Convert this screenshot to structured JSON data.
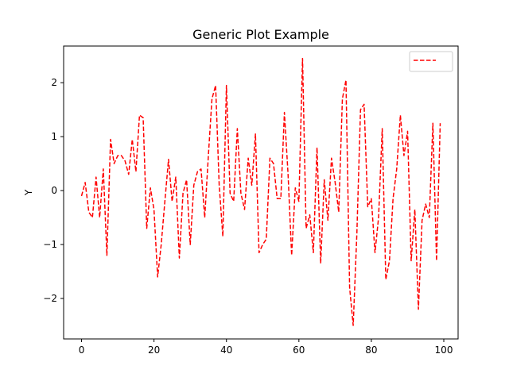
{
  "chart_data": {
    "type": "line",
    "title": "Generic Plot Example",
    "xlabel": "",
    "ylabel": "Y",
    "xlim": [
      -4.95,
      103.95
    ],
    "ylim": [
      -2.75,
      2.68
    ],
    "xticks": [
      0,
      20,
      40,
      60,
      80,
      100
    ],
    "yticks": [
      -2,
      -1,
      0,
      1,
      2
    ],
    "xtick_labels": [
      "0",
      "20",
      "40",
      "60",
      "80",
      "100"
    ],
    "ytick_labels": [
      "−2",
      "−1",
      "0",
      "1",
      "2"
    ],
    "grid": false,
    "legend": {
      "position": "upper-right",
      "entries": [
        ""
      ]
    },
    "series": [
      {
        "name": "",
        "color": "#ff0000",
        "linestyle": "dashed",
        "x": [
          0,
          1,
          2,
          3,
          4,
          5,
          6,
          7,
          8,
          9,
          10,
          11,
          12,
          13,
          14,
          15,
          16,
          17,
          18,
          19,
          20,
          21,
          22,
          23,
          24,
          25,
          26,
          27,
          28,
          29,
          30,
          31,
          32,
          33,
          34,
          35,
          36,
          37,
          38,
          39,
          40,
          41,
          42,
          43,
          44,
          45,
          46,
          47,
          48,
          49,
          50,
          51,
          52,
          53,
          54,
          55,
          56,
          57,
          58,
          59,
          60,
          61,
          62,
          63,
          64,
          65,
          66,
          67,
          68,
          69,
          70,
          71,
          72,
          73,
          74,
          75,
          76,
          77,
          78,
          79,
          80,
          81,
          82,
          83,
          84,
          85,
          86,
          87,
          88,
          89,
          90,
          91,
          92,
          93,
          94,
          95,
          96,
          97,
          98,
          99
        ],
        "y": [
          -0.1,
          0.15,
          -0.4,
          -0.5,
          0.25,
          -0.5,
          0.4,
          -1.2,
          0.95,
          0.5,
          0.65,
          0.65,
          0.55,
          0.3,
          0.95,
          0.35,
          1.4,
          1.35,
          -0.7,
          0.05,
          -0.35,
          -1.6,
          -1.0,
          -0.2,
          0.58,
          -0.2,
          0.25,
          -1.25,
          -0.05,
          0.2,
          -1.0,
          0.1,
          0.35,
          0.4,
          -0.5,
          0.65,
          1.7,
          1.95,
          0.1,
          -0.85,
          1.95,
          -0.05,
          -0.2,
          1.15,
          -0.05,
          -0.35,
          0.6,
          0.1,
          1.05,
          -1.15,
          -1.0,
          -0.9,
          0.6,
          0.5,
          -0.15,
          -0.15,
          1.45,
          0.3,
          -1.2,
          0.05,
          -0.2,
          2.45,
          -0.7,
          -0.45,
          -1.15,
          0.8,
          -1.35,
          0.2,
          -0.55,
          0.6,
          0.15,
          -0.4,
          1.7,
          2.05,
          -1.8,
          -2.5,
          -0.8,
          1.5,
          1.6,
          -0.3,
          -0.15,
          -1.15,
          -0.5,
          1.15,
          -1.65,
          -1.3,
          -0.15,
          0.4,
          1.4,
          0.65,
          1.1,
          -1.3,
          -0.35,
          -2.2,
          -0.55,
          -0.25,
          -0.5,
          1.25,
          -1.3,
          1.25
        ]
      }
    ]
  }
}
